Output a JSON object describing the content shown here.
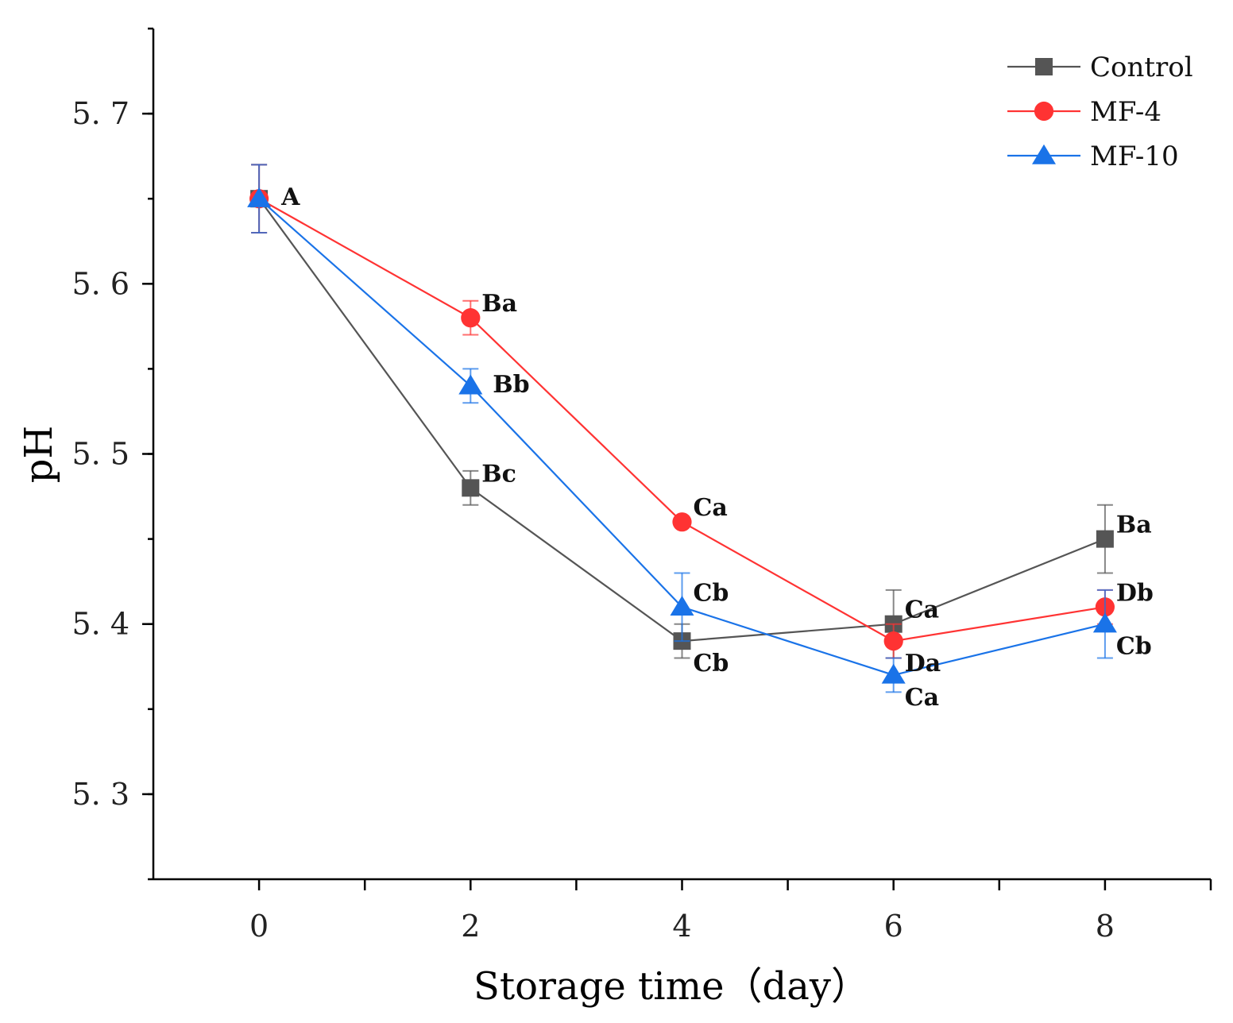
{
  "chart_data": {
    "type": "line",
    "xlabel": "Storage time（day）",
    "ylabel": "pH",
    "xlim": [
      -1,
      9
    ],
    "ylim": [
      5.25,
      5.75
    ],
    "xticks": [
      0,
      2,
      4,
      6,
      8
    ],
    "xminor": [
      1,
      3,
      5,
      7,
      9
    ],
    "yticks": [
      5.3,
      5.4,
      5.5,
      5.6,
      5.7
    ],
    "ytick_labels": [
      "5. 3",
      "5. 4",
      "5. 5",
      "5. 6",
      "5. 7"
    ],
    "xtick_labels": [
      "0",
      "2",
      "4",
      "6",
      "8"
    ],
    "grid": false,
    "legend_position": "top-right",
    "x": [
      0,
      2,
      4,
      6,
      8
    ],
    "series": [
      {
        "name": "Control",
        "color": "#555555",
        "marker": "square",
        "values": [
          5.65,
          5.48,
          5.39,
          5.4,
          5.45
        ],
        "errors": [
          0.02,
          0.01,
          0.01,
          0.02,
          0.02
        ]
      },
      {
        "name": "MF-4",
        "color": "#ff3333",
        "marker": "circle",
        "values": [
          5.65,
          5.58,
          5.46,
          5.39,
          5.41
        ],
        "errors": [
          0.02,
          0.01,
          0.0,
          0.01,
          0.01
        ]
      },
      {
        "name": "MF-10",
        "color": "#1a73e8",
        "marker": "triangle",
        "values": [
          5.65,
          5.54,
          5.41,
          5.37,
          5.4
        ],
        "errors": [
          0.02,
          0.01,
          0.02,
          0.01,
          0.02
        ]
      }
    ],
    "annotations": [
      {
        "text": "A",
        "x": 0,
        "y": 5.65,
        "anchor": "right"
      },
      {
        "text": "Ba",
        "x": 2,
        "y": 5.58,
        "anchor": "above-right"
      },
      {
        "text": "Bb",
        "x": 2,
        "y": 5.54,
        "anchor": "right"
      },
      {
        "text": "Bc",
        "x": 2,
        "y": 5.48,
        "anchor": "above-right"
      },
      {
        "text": "Ca",
        "x": 4,
        "y": 5.46,
        "anchor": "above-right"
      },
      {
        "text": "Cb",
        "x": 4,
        "y": 5.41,
        "anchor": "above-right"
      },
      {
        "text": "Cb",
        "x": 4,
        "y": 5.39,
        "anchor": "below-right"
      },
      {
        "text": "Ca",
        "x": 6,
        "y": 5.4,
        "anchor": "above-right"
      },
      {
        "text": "Da",
        "x": 6,
        "y": 5.39,
        "anchor": "below-right"
      },
      {
        "text": "Ca",
        "x": 6,
        "y": 5.37,
        "anchor": "below-right"
      },
      {
        "text": "Ba",
        "x": 8,
        "y": 5.45,
        "anchor": "above-right"
      },
      {
        "text": "Db",
        "x": 8,
        "y": 5.41,
        "anchor": "above-right"
      },
      {
        "text": "Cb",
        "x": 8,
        "y": 5.4,
        "anchor": "below-right"
      }
    ]
  }
}
